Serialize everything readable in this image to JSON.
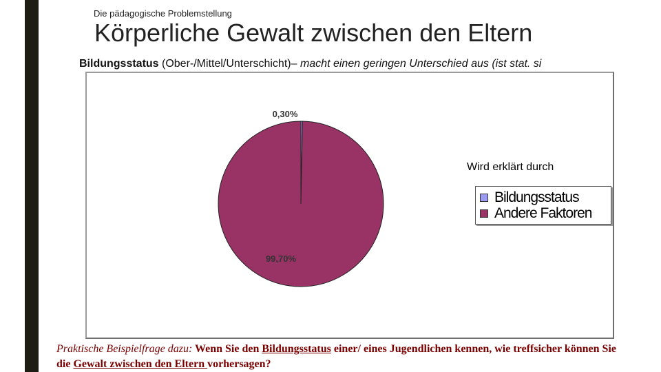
{
  "slide": {
    "section": "Die pädagogische Problemstellung",
    "title": "Körperliche Gewalt zwischen den Eltern",
    "note": {
      "bold": "Bildungsstatus",
      "normal": " (Ober-/Mittel/Unterschicht)",
      "italic": "– macht einen geringen Unterschied aus (ist stat. si"
    },
    "question": {
      "italic": "Praktische Beispielfrage dazu:",
      "p1": " Wenn Sie den ",
      "u1": "Bildungsstatus",
      "p2": " einer/ eines Jugendlichen kennen, wie treffsicher können Sie die ",
      "u2": "Gewalt zwischen den Eltern ",
      "p3": "vorhersagen?"
    }
  },
  "chart_data": {
    "type": "pie",
    "legend_title": "Wird erklärt durch",
    "legend_position": "right",
    "slices": [
      {
        "name": "Bildungsstatus",
        "value": 0.3,
        "label": "0,30%",
        "color": "#9b9bf2"
      },
      {
        "name": "Andere Faktoren",
        "value": 99.7,
        "label": "99,70%",
        "color": "#993366"
      }
    ]
  }
}
